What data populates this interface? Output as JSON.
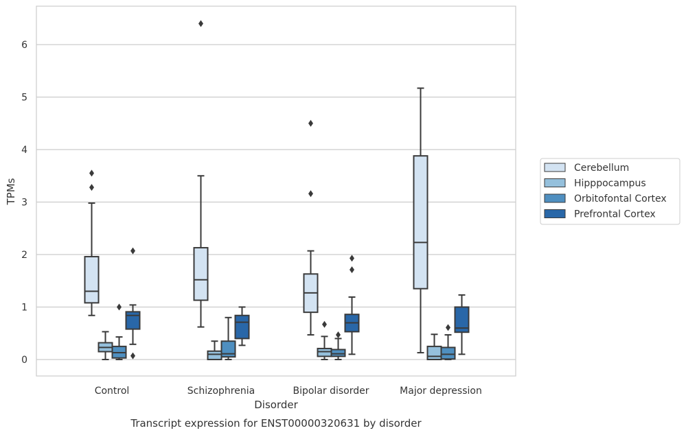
{
  "chart_data": {
    "type": "box",
    "caption": "Transcript expression for ENST00000320631 by disorder",
    "xlabel": "Disorder",
    "ylabel": "TPMs",
    "ylim": [
      -0.3,
      6.75
    ],
    "yticks": [
      0,
      1,
      2,
      3,
      4,
      5,
      6
    ],
    "grid": "horizontal",
    "legend_position": "right",
    "categories": [
      "Control",
      "Schizophrenia",
      "Bipolar disorder",
      "Major depression"
    ],
    "series": [
      {
        "name": "Cerebellum",
        "color": "#d3e3f2",
        "boxes": [
          {
            "whislo": 0.84,
            "q1": 1.08,
            "med": 1.3,
            "q3": 1.96,
            "whishi": 2.98,
            "fliers": [
              3.28,
              3.55
            ]
          },
          {
            "whislo": 0.62,
            "q1": 1.13,
            "med": 1.52,
            "q3": 2.13,
            "whishi": 3.5,
            "fliers": [
              6.4
            ]
          },
          {
            "whislo": 0.47,
            "q1": 0.9,
            "med": 1.27,
            "q3": 1.63,
            "whishi": 2.07,
            "fliers": [
              3.16,
              4.5
            ]
          },
          {
            "whislo": 0.13,
            "q1": 1.35,
            "med": 2.23,
            "q3": 3.88,
            "whishi": 5.17,
            "fliers": []
          }
        ]
      },
      {
        "name": "Hipppocampus",
        "color": "#95c0dc",
        "boxes": [
          {
            "whislo": 0.0,
            "q1": 0.15,
            "med": 0.23,
            "q3": 0.32,
            "whishi": 0.53,
            "fliers": []
          },
          {
            "whislo": 0.0,
            "q1": 0.0,
            "med": 0.1,
            "q3": 0.16,
            "whishi": 0.35,
            "fliers": []
          },
          {
            "whislo": 0.0,
            "q1": 0.06,
            "med": 0.15,
            "q3": 0.21,
            "whishi": 0.44,
            "fliers": [
              0.67
            ]
          },
          {
            "whislo": 0.0,
            "q1": 0.0,
            "med": 0.06,
            "q3": 0.25,
            "whishi": 0.48,
            "fliers": []
          }
        ]
      },
      {
        "name": "Orbitofontal Cortex",
        "color": "#4f8fc0",
        "boxes": [
          {
            "whislo": 0.0,
            "q1": 0.03,
            "med": 0.13,
            "q3": 0.25,
            "whishi": 0.43,
            "fliers": [
              1.0
            ]
          },
          {
            "whislo": 0.0,
            "q1": 0.05,
            "med": 0.11,
            "q3": 0.35,
            "whishi": 0.8,
            "fliers": []
          },
          {
            "whislo": 0.0,
            "q1": 0.06,
            "med": 0.11,
            "q3": 0.19,
            "whishi": 0.4,
            "fliers": [
              0.47
            ]
          },
          {
            "whislo": 0.0,
            "q1": 0.01,
            "med": 0.1,
            "q3": 0.23,
            "whishi": 0.47,
            "fliers": [
              0.61
            ]
          }
        ]
      },
      {
        "name": "Prefrontal Cortex",
        "color": "#2967a8",
        "boxes": [
          {
            "whislo": 0.29,
            "q1": 0.58,
            "med": 0.84,
            "q3": 0.91,
            "whishi": 1.04,
            "fliers": [
              0.07,
              2.07
            ]
          },
          {
            "whislo": 0.27,
            "q1": 0.4,
            "med": 0.71,
            "q3": 0.84,
            "whishi": 1.0,
            "fliers": []
          },
          {
            "whislo": 0.1,
            "q1": 0.53,
            "med": 0.7,
            "q3": 0.86,
            "whishi": 1.19,
            "fliers": [
              1.71,
              1.93
            ]
          },
          {
            "whislo": 0.1,
            "q1": 0.52,
            "med": 0.6,
            "q3": 1.0,
            "whishi": 1.23,
            "fliers": []
          }
        ]
      }
    ]
  }
}
